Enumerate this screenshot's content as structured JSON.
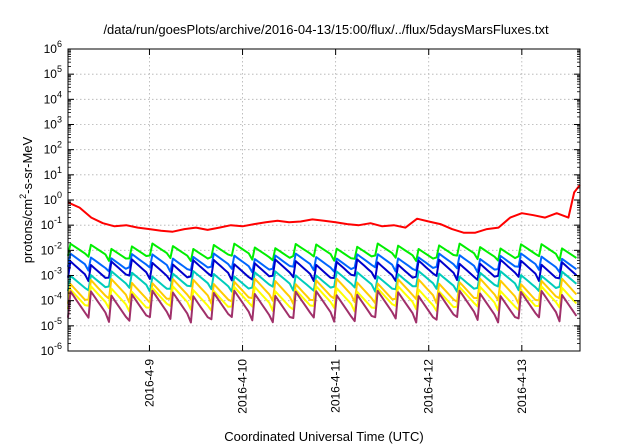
{
  "chart_data": {
    "type": "line",
    "title": "/data/run/goesPlots/archive/2016-04-13/15:00/flux/../flux/5daysMarsFluxes.txt",
    "xlabel": "Coordinated Universal Time (UTC)",
    "ylabel_main": "protons/cm",
    "ylabel_sup": "2",
    "ylabel_tail": "-s-sr-MeV",
    "y_scale": "log",
    "ylim": [
      1e-06,
      1000000.0
    ],
    "y_ticks": [
      {
        "base": "10",
        "exp": "-6",
        "value": 1e-06
      },
      {
        "base": "10",
        "exp": "-5",
        "value": 1e-05
      },
      {
        "base": "10",
        "exp": "-4",
        "value": 0.0001
      },
      {
        "base": "10",
        "exp": "-3",
        "value": 0.001
      },
      {
        "base": "10",
        "exp": "-2",
        "value": 0.01
      },
      {
        "base": "10",
        "exp": "-1",
        "value": 0.1
      },
      {
        "base": "10",
        "exp": "0",
        "value": 1
      },
      {
        "base": "10",
        "exp": "1",
        "value": 10
      },
      {
        "base": "10",
        "exp": "2",
        "value": 100
      },
      {
        "base": "10",
        "exp": "3",
        "value": 1000
      },
      {
        "base": "10",
        "exp": "4",
        "value": 10000
      },
      {
        "base": "10",
        "exp": "5",
        "value": 100000
      },
      {
        "base": "10",
        "exp": "6",
        "value": 1000000
      }
    ],
    "x_start": "2016-04-08 03:00",
    "x_end": "2016-04-13 15:00",
    "x_ticks": [
      {
        "label": "2016-4-9",
        "date": "2016-04-09 00:00"
      },
      {
        "label": "2016-4-10",
        "date": "2016-04-10 00:00"
      },
      {
        "label": "2016-4-11",
        "date": "2016-04-11 00:00"
      },
      {
        "label": "2016-4-12",
        "date": "2016-04-12 00:00"
      },
      {
        "label": "2016-4-13",
        "date": "2016-04-13 00:00"
      }
    ],
    "grid": true,
    "legend": "none",
    "series": [
      {
        "color": "#ff0000",
        "x": [
          "2016-04-08 03:00",
          "2016-04-08 06:00",
          "2016-04-08 09:00",
          "2016-04-08 12:00",
          "2016-04-08 15:00",
          "2016-04-08 18:00",
          "2016-04-08 21:00",
          "2016-04-09 00:00",
          "2016-04-09 03:00",
          "2016-04-09 06:00",
          "2016-04-09 09:00",
          "2016-04-09 12:00",
          "2016-04-09 15:00",
          "2016-04-09 18:00",
          "2016-04-09 21:00",
          "2016-04-10 00:00",
          "2016-04-10 03:00",
          "2016-04-10 06:00",
          "2016-04-10 09:00",
          "2016-04-10 12:00",
          "2016-04-10 15:00",
          "2016-04-10 18:00",
          "2016-04-10 21:00",
          "2016-04-11 00:00",
          "2016-04-11 03:00",
          "2016-04-11 06:00",
          "2016-04-11 09:00",
          "2016-04-11 12:00",
          "2016-04-11 15:00",
          "2016-04-11 18:00",
          "2016-04-11 21:00",
          "2016-04-12 00:00",
          "2016-04-12 03:00",
          "2016-04-12 06:00",
          "2016-04-12 09:00",
          "2016-04-12 12:00",
          "2016-04-12 15:00",
          "2016-04-12 18:00",
          "2016-04-12 21:00",
          "2016-04-13 00:00",
          "2016-04-13 03:00",
          "2016-04-13 06:00",
          "2016-04-13 09:00",
          "2016-04-13 12:00",
          "2016-04-13 13:30",
          "2016-04-13 15:00"
        ],
        "y": [
          0.8,
          0.5,
          0.2,
          0.12,
          0.09,
          0.1,
          0.08,
          0.07,
          0.06,
          0.055,
          0.07,
          0.08,
          0.065,
          0.08,
          0.1,
          0.09,
          0.11,
          0.13,
          0.15,
          0.13,
          0.14,
          0.17,
          0.15,
          0.13,
          0.11,
          0.1,
          0.12,
          0.09,
          0.1,
          0.08,
          0.18,
          0.14,
          0.11,
          0.07,
          0.05,
          0.05,
          0.07,
          0.08,
          0.2,
          0.3,
          0.25,
          0.2,
          0.3,
          0.2,
          2.0,
          4.0
        ]
      },
      {
        "color": "#00ee00",
        "base": 0.015,
        "trough": 0.005,
        "cycles": 25
      },
      {
        "color": "#0066ff",
        "base": 0.006,
        "trough": 0.0018,
        "cycles": 25
      },
      {
        "color": "#0000cc",
        "base": 0.0035,
        "trough": 0.0008,
        "cycles": 25
      },
      {
        "color": "#00ccbb",
        "base": 0.0012,
        "trough": 0.0003,
        "cycles": 25
      },
      {
        "color": "#ffcc00",
        "base": 0.0006,
        "trough": 0.0001,
        "cycles": 25
      },
      {
        "color": "#ffff00",
        "base": 0.0003,
        "trough": 5e-05,
        "cycles": 25
      },
      {
        "color": "#a0306a",
        "base": 0.0002,
        "trough": 1.8e-05,
        "cycles": 25
      }
    ]
  }
}
